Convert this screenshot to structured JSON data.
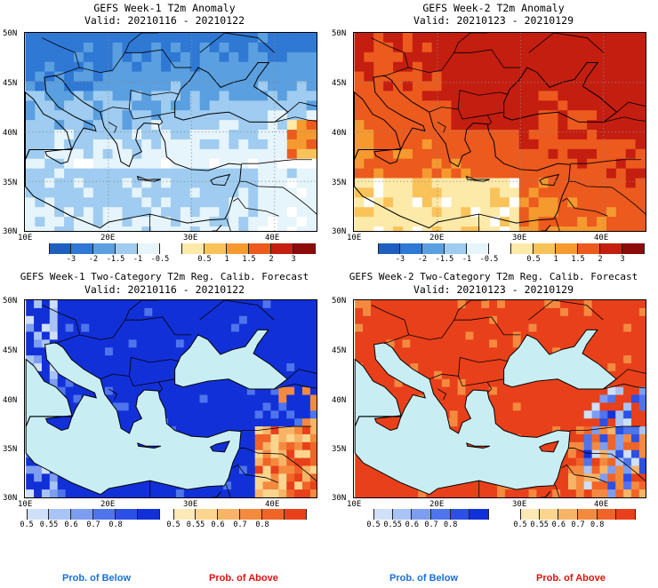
{
  "panels": [
    {
      "title": "GEFS Week-1 T2m Anomaly",
      "valid": "Valid: 20210116 - 20210122",
      "y_ticks": [
        "50N",
        "45N",
        "40N",
        "35N",
        "30N"
      ],
      "x_ticks": [
        "10E",
        "20E",
        "30E",
        "40E"
      ],
      "field": "anomaly_week1",
      "colorbar": {
        "colors": [
          "#1f5fbf",
          "#2f78d4",
          "#5a9fe0",
          "#9fccf0",
          "#e6f4fb",
          "#ffffff",
          "#fde9a8",
          "#f9c35a",
          "#f59a2f",
          "#ec5a1e",
          "#c41e10",
          "#8c0a0a"
        ],
        "labels": [
          "-3",
          "-2",
          "-1.5",
          "-1",
          "-0.5",
          "0.5",
          "1",
          "1.5",
          "2",
          "3"
        ]
      }
    },
    {
      "title": "GEFS Week-2 T2m Anomaly",
      "valid": "Valid: 20210123 - 20210129",
      "y_ticks": [
        "50N",
        "45N",
        "40N",
        "35N",
        "30N"
      ],
      "x_ticks": [
        "10E",
        "20E",
        "30E",
        "40E"
      ],
      "field": "anomaly_week2",
      "colorbar": {
        "colors": [
          "#1f5fbf",
          "#2f78d4",
          "#5a9fe0",
          "#9fccf0",
          "#e6f4fb",
          "#ffffff",
          "#fde9a8",
          "#f9c35a",
          "#f59a2f",
          "#ec5a1e",
          "#c41e10",
          "#8c0a0a"
        ],
        "labels": [
          "-3",
          "-2",
          "-1.5",
          "-1",
          "-0.5",
          "0.5",
          "1",
          "1.5",
          "2",
          "3"
        ]
      }
    },
    {
      "title": "GEFS Week-1 Two-Category T2m Reg. Calib. Forecast",
      "valid": "Valid: 20210116 - 20210122",
      "y_ticks": [
        "50N",
        "45N",
        "40N",
        "35N",
        "30N"
      ],
      "x_ticks": [
        "10E",
        "20E",
        "30E",
        "40E"
      ],
      "field": "prob_week1",
      "colorbar_below": {
        "colors": [
          "#cfe0f8",
          "#a8c4f4",
          "#7d9df0",
          "#4f74ec",
          "#2c4fe6",
          "#1230d8"
        ],
        "labels": [
          "0.5",
          "0.55",
          "0.6",
          "0.7",
          "0.8"
        ]
      },
      "colorbar_above": {
        "colors": [
          "#fde9b8",
          "#fbd58e",
          "#f8b466",
          "#f48a40",
          "#f06428",
          "#e8401a"
        ],
        "labels": [
          "0.5",
          "0.55",
          "0.6",
          "0.7",
          "0.8"
        ]
      }
    },
    {
      "title": "GEFS Week-2 Two-Category T2m Reg. Calib. Forecast",
      "valid": "Valid: 20210123 - 20210129",
      "y_ticks": [
        "50N",
        "45N",
        "40N",
        "35N",
        "30N"
      ],
      "x_ticks": [
        "10E",
        "20E",
        "30E",
        "40E"
      ],
      "field": "prob_week2",
      "colorbar_below": {
        "colors": [
          "#cfe0f8",
          "#a8c4f4",
          "#7d9df0",
          "#4f74ec",
          "#2c4fe6",
          "#1230d8"
        ],
        "labels": [
          "0.5",
          "0.55",
          "0.6",
          "0.7",
          "0.8"
        ]
      },
      "colorbar_above": {
        "colors": [
          "#fde9b8",
          "#fbd58e",
          "#f8b466",
          "#f48a40",
          "#f06428",
          "#e8401a"
        ],
        "labels": [
          "0.5",
          "0.55",
          "0.6",
          "0.7",
          "0.8"
        ]
      }
    }
  ],
  "legend": {
    "below_label": "Prob. of Below",
    "above_label": "Prob. of Above",
    "below_color": "#1a6fd6",
    "above_color": "#e01010"
  },
  "map_colors": {
    "sea": "#c8eef4",
    "coast": "#000000"
  }
}
